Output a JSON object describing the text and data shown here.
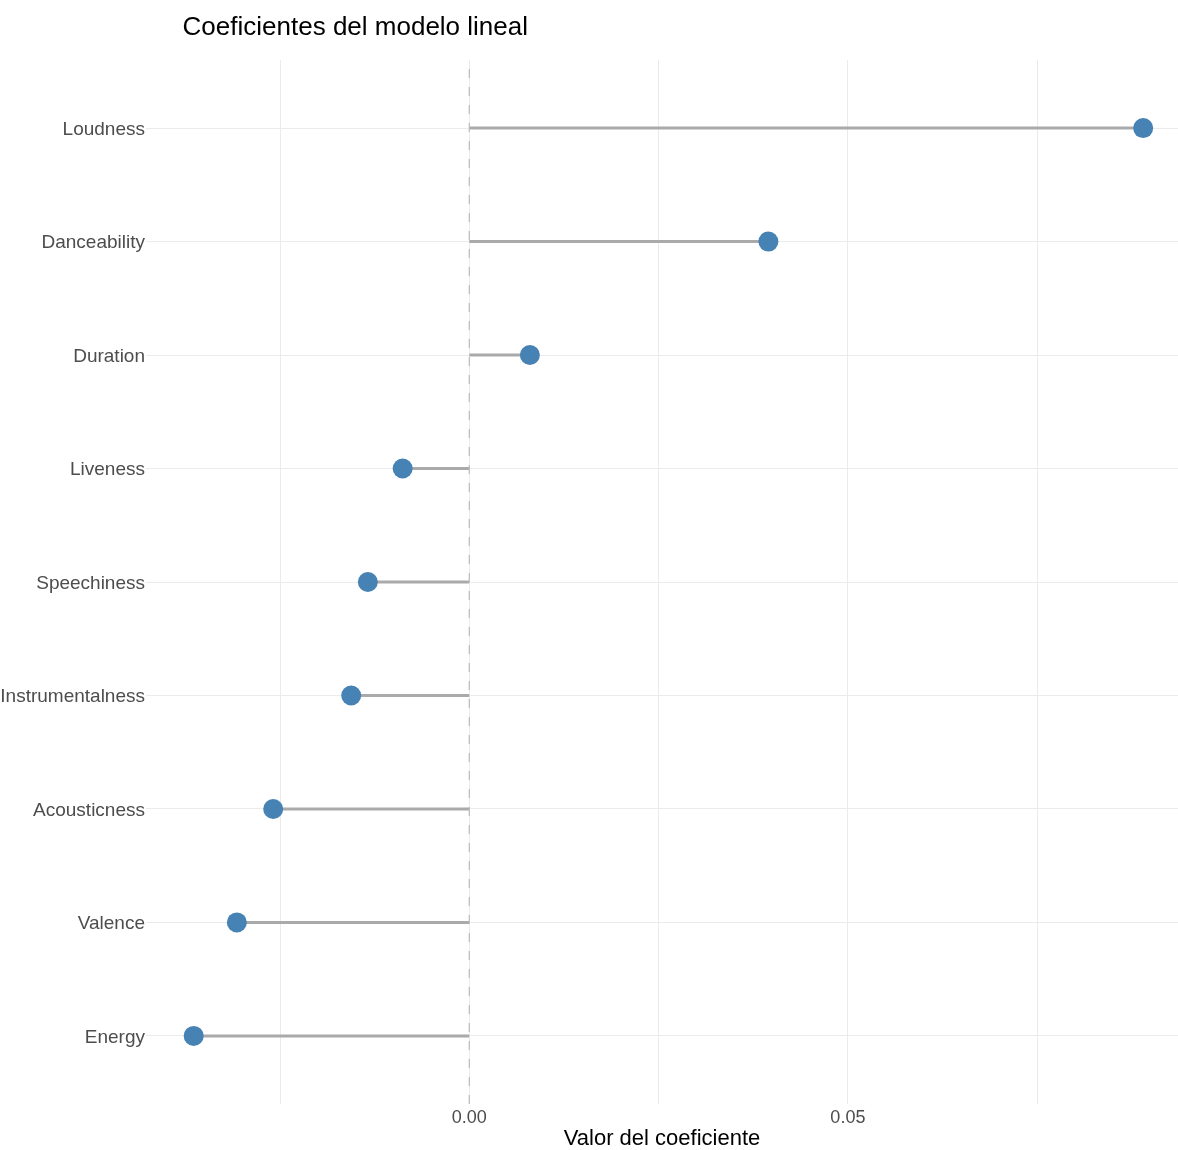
{
  "chart_data": {
    "type": "lollipop",
    "orientation": "horizontal",
    "title": "Coeficientes del modelo lineal",
    "xlabel": "Valor del coeficiente",
    "categories": [
      "Loudness",
      "Danceability",
      "Duration",
      "Liveness",
      "Speechiness",
      "Instrumentalness",
      "Acousticness",
      "Valence",
      "Energy"
    ],
    "series": [
      {
        "color": "#4682b4",
        "values": [
          0.089,
          0.0395,
          0.008,
          -0.0088,
          -0.0134,
          -0.0156,
          -0.0259,
          -0.0307,
          -0.0364
        ]
      }
    ],
    "xlim": [
      -0.0427,
      0.0936
    ],
    "xticks": [
      {
        "value": -0.025,
        "label": null
      },
      {
        "value": 0,
        "label": "0.00"
      },
      {
        "value": 0.025,
        "label": null
      },
      {
        "value": 0.05,
        "label": "0.05"
      },
      {
        "value": 0.075,
        "label": null
      }
    ],
    "ref_lines": [
      {
        "axis": "x",
        "value": 0,
        "color": "#bbbbbb",
        "line_style": "dashed"
      }
    ],
    "grid": true,
    "marker": "circle"
  }
}
